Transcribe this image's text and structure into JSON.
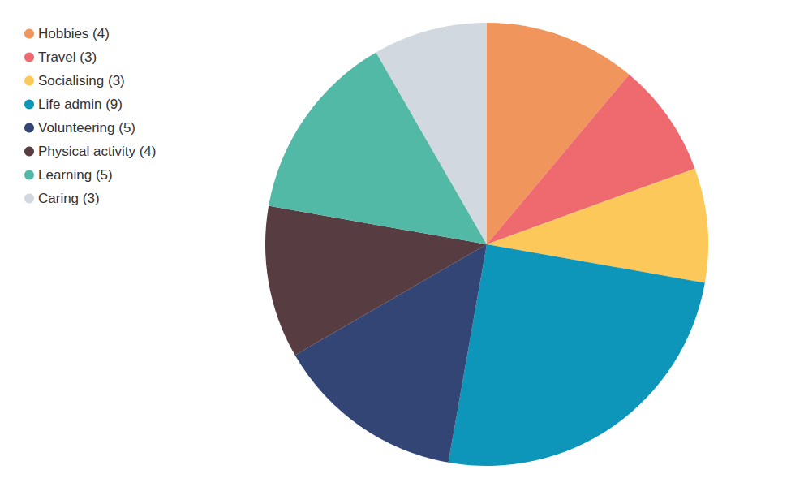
{
  "chart_data": {
    "type": "pie",
    "categories": [
      "Hobbies (4)",
      "Travel (3)",
      "Socialising (3)",
      "Life admin (9)",
      "Volunteering (5)",
      "Physical activity (4)",
      "Learning (5)",
      "Caring (3)"
    ],
    "values": [
      4,
      3,
      3,
      9,
      5,
      4,
      5,
      3
    ],
    "colors": [
      "#f0955b",
      "#ee6a6e",
      "#fdc85a",
      "#0e95ba",
      "#324575",
      "#573c41",
      "#52b9a6",
      "#d1d8df"
    ],
    "legend": "top-left"
  }
}
